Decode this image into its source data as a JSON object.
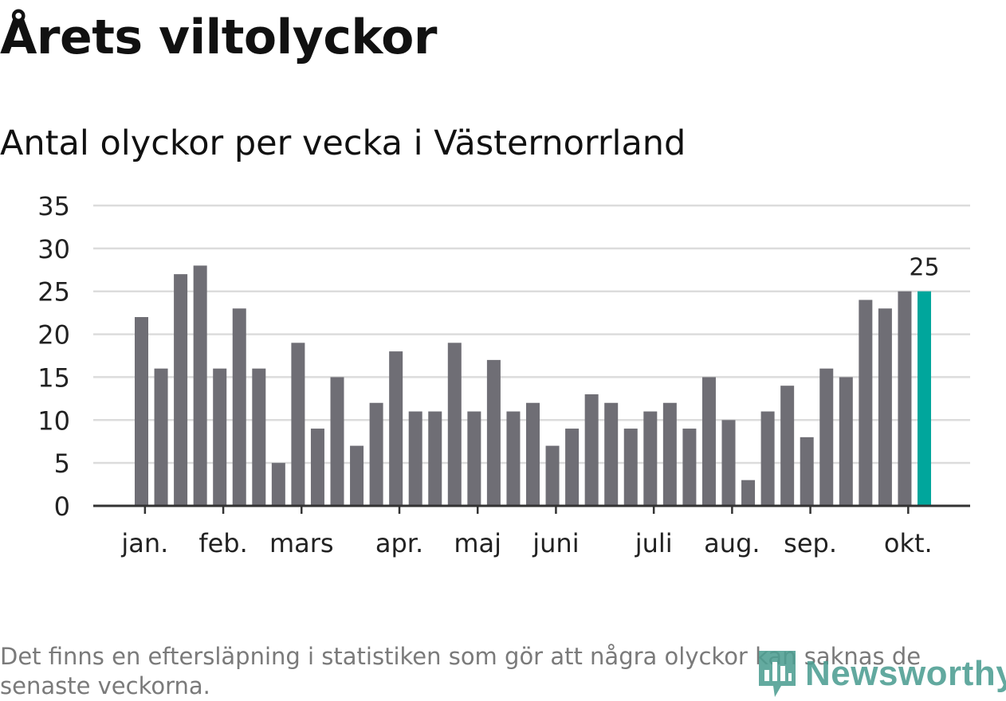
{
  "title": "Årets viltolyckor",
  "subtitle": "Antal olyckor per vecka i Västernorrland",
  "note": "Det finns en eftersläpning i statistiken som gör att några olyckor kan saknas de senaste veckorna.",
  "brand": {
    "name": "Newsworthy",
    "icon": "bar-chart-logo-icon",
    "color": "#4d9e92"
  },
  "colors": {
    "bar": "#6f6e75",
    "highlight": "#00a69c",
    "grid": "#dcdcdc",
    "axis": "#333333"
  },
  "chart_data": {
    "type": "bar",
    "title": "Antal olyckor per vecka i Västernorrland",
    "xlabel": "",
    "ylabel": "",
    "ylim": [
      0,
      35
    ],
    "yticks": [
      0,
      5,
      10,
      15,
      20,
      25,
      30,
      35
    ],
    "grid": true,
    "values": [
      22,
      16,
      27,
      28,
      16,
      23,
      16,
      5,
      19,
      9,
      15,
      7,
      12,
      18,
      11,
      11,
      19,
      11,
      17,
      11,
      12,
      7,
      9,
      13,
      12,
      9,
      11,
      12,
      9,
      15,
      10,
      3,
      11,
      14,
      8,
      16,
      15,
      24,
      23,
      25,
      25
    ],
    "highlight_index": 40,
    "highlight_label": "25",
    "month_ticks": [
      {
        "label": "jan.",
        "bar": 0.3
      },
      {
        "label": "feb.",
        "bar": 4.3
      },
      {
        "label": "mars",
        "bar": 8.3
      },
      {
        "label": "apr.",
        "bar": 13.3
      },
      {
        "label": "maj",
        "bar": 17.3
      },
      {
        "label": "juni",
        "bar": 21.3
      },
      {
        "label": "juli",
        "bar": 26.3
      },
      {
        "label": "aug.",
        "bar": 30.3
      },
      {
        "label": "sep.",
        "bar": 34.3
      },
      {
        "label": "okt.",
        "bar": 39.3
      }
    ]
  }
}
